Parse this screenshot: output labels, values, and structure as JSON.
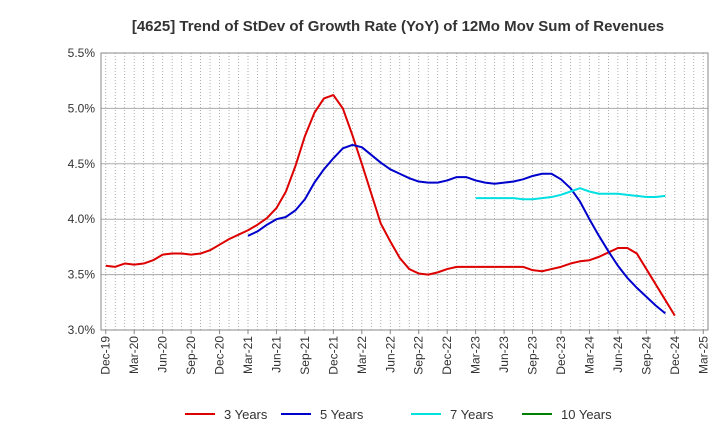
{
  "chart_data": {
    "type": "line",
    "title": "[4625]  Trend of StDev of Growth Rate (YoY) of 12Mo Mov Sum of Revenues",
    "xlabel": "",
    "ylabel": "",
    "ylim": [
      3.0,
      5.5
    ],
    "yticks": [
      {
        "value": 3.0,
        "label": "3.0%"
      },
      {
        "value": 3.5,
        "label": "3.5%"
      },
      {
        "value": 4.0,
        "label": "4.0%"
      },
      {
        "value": 4.5,
        "label": "4.5%"
      },
      {
        "value": 5.0,
        "label": "5.0%"
      },
      {
        "value": 5.5,
        "label": "5.5%"
      }
    ],
    "x_months": [
      "2019-12",
      "2020-01",
      "2020-02",
      "2020-03",
      "2020-04",
      "2020-05",
      "2020-06",
      "2020-07",
      "2020-08",
      "2020-09",
      "2020-10",
      "2020-11",
      "2020-12",
      "2021-01",
      "2021-02",
      "2021-03",
      "2021-04",
      "2021-05",
      "2021-06",
      "2021-07",
      "2021-08",
      "2021-09",
      "2021-10",
      "2021-11",
      "2021-12",
      "2022-01",
      "2022-02",
      "2022-03",
      "2022-04",
      "2022-05",
      "2022-06",
      "2022-07",
      "2022-08",
      "2022-09",
      "2022-10",
      "2022-11",
      "2022-12",
      "2023-01",
      "2023-02",
      "2023-03",
      "2023-04",
      "2023-05",
      "2023-06",
      "2023-07",
      "2023-08",
      "2023-09",
      "2023-10",
      "2023-11",
      "2023-12",
      "2024-01",
      "2024-02",
      "2024-03",
      "2024-04",
      "2024-05",
      "2024-06",
      "2024-07",
      "2024-08",
      "2024-09",
      "2024-10",
      "2024-11",
      "2024-12",
      "2025-01",
      "2025-02",
      "2025-03"
    ],
    "xticks": [
      {
        "index": 0,
        "label": "Dec-19"
      },
      {
        "index": 3,
        "label": "Mar-20"
      },
      {
        "index": 6,
        "label": "Jun-20"
      },
      {
        "index": 9,
        "label": "Sep-20"
      },
      {
        "index": 12,
        "label": "Dec-20"
      },
      {
        "index": 15,
        "label": "Mar-21"
      },
      {
        "index": 18,
        "label": "Jun-21"
      },
      {
        "index": 21,
        "label": "Sep-21"
      },
      {
        "index": 24,
        "label": "Dec-21"
      },
      {
        "index": 27,
        "label": "Mar-22"
      },
      {
        "index": 30,
        "label": "Jun-22"
      },
      {
        "index": 33,
        "label": "Sep-22"
      },
      {
        "index": 36,
        "label": "Dec-22"
      },
      {
        "index": 39,
        "label": "Mar-23"
      },
      {
        "index": 42,
        "label": "Jun-23"
      },
      {
        "index": 45,
        "label": "Sep-23"
      },
      {
        "index": 48,
        "label": "Dec-23"
      },
      {
        "index": 51,
        "label": "Mar-24"
      },
      {
        "index": 54,
        "label": "Jun-24"
      },
      {
        "index": 57,
        "label": "Sep-24"
      },
      {
        "index": 60,
        "label": "Dec-24"
      },
      {
        "index": 63,
        "label": "Mar-25"
      }
    ],
    "grid": {
      "horizontal": "solid",
      "vertical": "dotted-monthly"
    },
    "legend_position": "bottom",
    "series": [
      {
        "name": "3 Years",
        "color": "#dd0000",
        "start_index": 0,
        "values": [
          3.58,
          3.57,
          3.6,
          3.59,
          3.6,
          3.63,
          3.68,
          3.69,
          3.69,
          3.68,
          3.69,
          3.72,
          3.77,
          3.82,
          3.86,
          3.9,
          3.95,
          4.01,
          4.1,
          4.25,
          4.48,
          4.75,
          4.96,
          5.09,
          5.12,
          5.0,
          4.76,
          4.5,
          4.23,
          3.96,
          3.8,
          3.65,
          3.55,
          3.51,
          3.5,
          3.52,
          3.55,
          3.57,
          3.57,
          3.57,
          3.57,
          3.57,
          3.57,
          3.57,
          3.57,
          3.54,
          3.53,
          3.55,
          3.57,
          3.6,
          3.62,
          3.63,
          3.66,
          3.7,
          3.74,
          3.74,
          3.69,
          3.55,
          3.41,
          3.27,
          3.13
        ]
      },
      {
        "name": "5 Years",
        "color": "#0000cc",
        "start_index": 15,
        "values": [
          3.85,
          3.89,
          3.95,
          4.0,
          4.02,
          4.08,
          4.18,
          4.33,
          4.45,
          4.55,
          4.64,
          4.67,
          4.65,
          4.58,
          4.51,
          4.45,
          4.41,
          4.37,
          4.34,
          4.33,
          4.33,
          4.35,
          4.38,
          4.38,
          4.35,
          4.33,
          4.32,
          4.33,
          4.34,
          4.36,
          4.39,
          4.41,
          4.41,
          4.36,
          4.28,
          4.16,
          4.0,
          3.85,
          3.71,
          3.58,
          3.47,
          3.38,
          3.3,
          3.22,
          3.15
        ]
      },
      {
        "name": "7 Years",
        "color": "#00e0e0",
        "start_index": 39,
        "values": [
          4.19,
          4.19,
          4.19,
          4.19,
          4.19,
          4.18,
          4.18,
          4.19,
          4.2,
          4.22,
          4.25,
          4.28,
          4.25,
          4.23,
          4.23,
          4.23,
          4.22,
          4.21,
          4.2,
          4.2,
          4.21
        ]
      },
      {
        "name": "10 Years",
        "color": "#008000",
        "start_index": 0,
        "values": []
      }
    ]
  }
}
